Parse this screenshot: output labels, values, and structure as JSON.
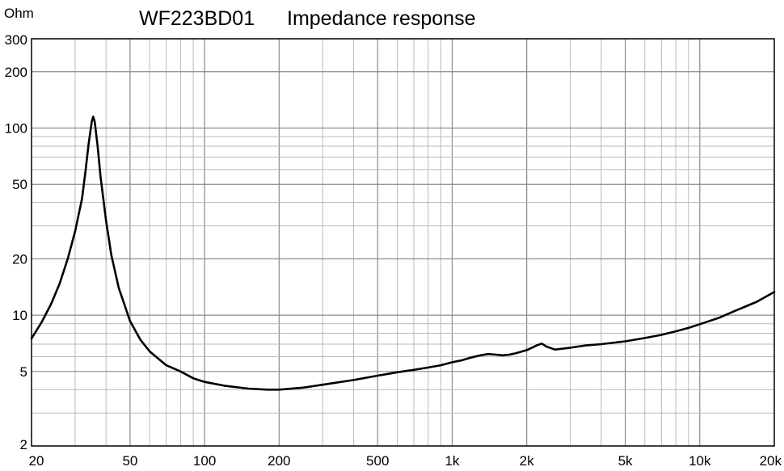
{
  "chart_data": {
    "type": "line",
    "model": "WF223BD01",
    "title": "Impedance response",
    "ylabel": "Ohm",
    "xlabel": "",
    "x_scale": "log",
    "y_scale": "log",
    "xlim": [
      20,
      20000
    ],
    "ylim": [
      2,
      300
    ],
    "grid": true,
    "x_tick_labels": [
      {
        "value": 20,
        "label": "20"
      },
      {
        "value": 50,
        "label": "50"
      },
      {
        "value": 100,
        "label": "100"
      },
      {
        "value": 200,
        "label": "200"
      },
      {
        "value": 500,
        "label": "500"
      },
      {
        "value": 1000,
        "label": "1k"
      },
      {
        "value": 2000,
        "label": "2k"
      },
      {
        "value": 5000,
        "label": "5k"
      },
      {
        "value": 10000,
        "label": "10k"
      },
      {
        "value": 20000,
        "label": "20k"
      }
    ],
    "y_tick_labels": [
      {
        "value": 2,
        "label": "2"
      },
      {
        "value": 5,
        "label": "5"
      },
      {
        "value": 10,
        "label": "10"
      },
      {
        "value": 20,
        "label": "20"
      },
      {
        "value": 50,
        "label": "50"
      },
      {
        "value": 100,
        "label": "100"
      },
      {
        "value": 200,
        "label": "200"
      },
      {
        "value": 300,
        "label": "300"
      }
    ],
    "series": [
      {
        "color": "#000000",
        "x": [
          20,
          22,
          24,
          26,
          28,
          30,
          32,
          33,
          34,
          35,
          35.5,
          36,
          37,
          38,
          40,
          42,
          45,
          50,
          55,
          60,
          70,
          80,
          90,
          100,
          120,
          150,
          180,
          200,
          250,
          300,
          400,
          500,
          600,
          700,
          800,
          900,
          1000,
          1100,
          1200,
          1300,
          1400,
          1500,
          1600,
          1700,
          1800,
          2000,
          2200,
          2300,
          2400,
          2600,
          3000,
          3500,
          4000,
          5000,
          6000,
          7000,
          8000,
          9000,
          10000,
          12000,
          14000,
          15000,
          17000,
          20000
        ],
        "y": [
          7.5,
          9.2,
          11.5,
          14.8,
          20,
          28,
          42,
          58,
          82,
          108,
          115,
          108,
          80,
          55,
          32,
          21,
          14,
          9.3,
          7.4,
          6.4,
          5.4,
          5.0,
          4.6,
          4.4,
          4.2,
          4.05,
          4.0,
          4.0,
          4.1,
          4.25,
          4.5,
          4.75,
          4.95,
          5.1,
          5.25,
          5.4,
          5.6,
          5.75,
          5.95,
          6.1,
          6.2,
          6.15,
          6.1,
          6.15,
          6.25,
          6.5,
          6.9,
          7.05,
          6.8,
          6.55,
          6.7,
          6.9,
          7.0,
          7.25,
          7.55,
          7.85,
          8.2,
          8.55,
          8.95,
          9.7,
          10.6,
          11.0,
          11.8,
          13.3
        ]
      }
    ]
  }
}
